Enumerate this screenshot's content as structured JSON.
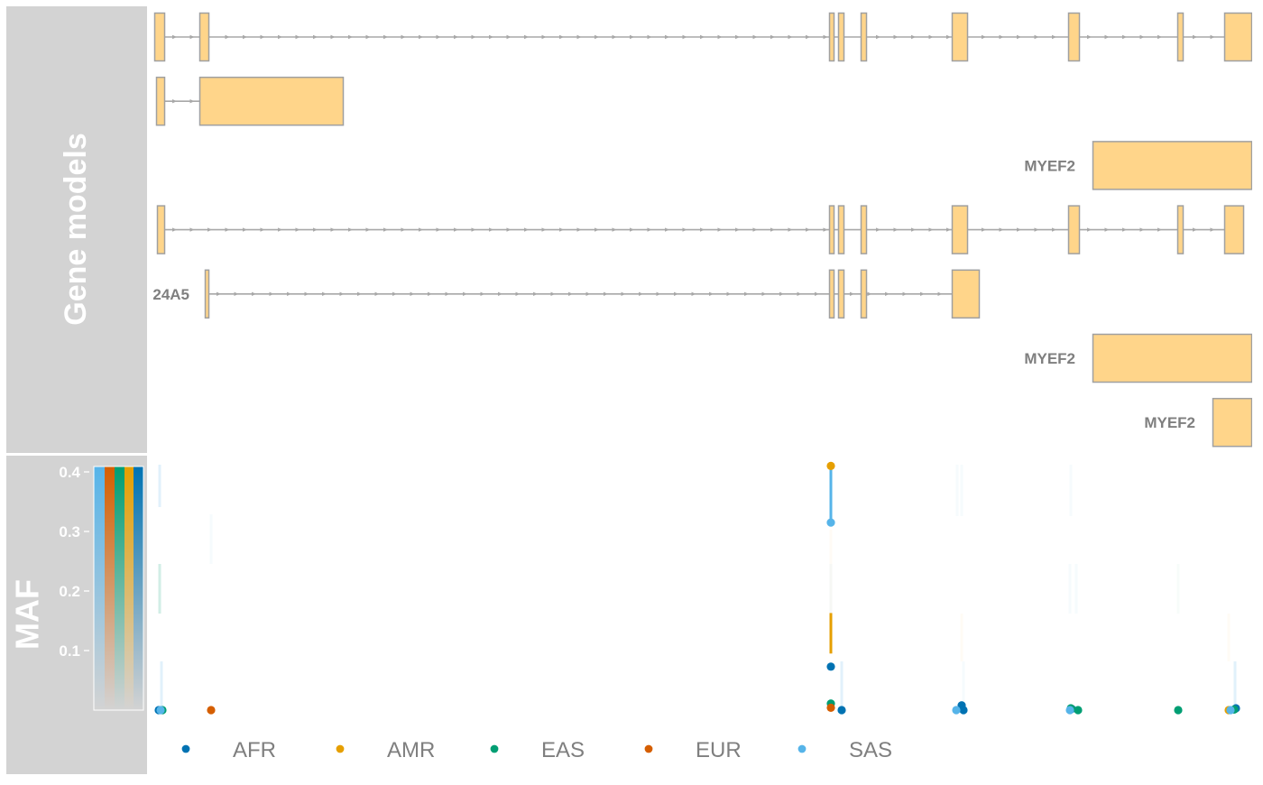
{
  "panels": {
    "gene_models_label": "Gene models",
    "maf_label": "MAF"
  },
  "colors": {
    "panel_bg": "#d3d3d3",
    "exon_fill": "#ffd58a",
    "exon_stroke": "#a0a0a0",
    "intron": "#a8a8a8",
    "gene_label": "#7f7f7f"
  },
  "chart_data": [
    {
      "type": "gene_track",
      "x_unit": "genomic position (relative)",
      "transcripts": [
        {
          "label": "",
          "label_x": null,
          "intron_span": [
            182,
            1357
          ],
          "exons": [
            [
              171,
              182
            ],
            [
              221,
              231
            ],
            [
              919,
              924
            ],
            [
              929,
              935
            ],
            [
              954,
              960
            ],
            [
              1055,
              1072
            ],
            [
              1184,
              1196
            ],
            [
              1305,
              1311
            ],
            [
              1357,
              1387
            ]
          ]
        },
        {
          "label": "",
          "label_x": null,
          "intron_span": [
            182,
            221
          ],
          "exons": [
            [
              173,
              182
            ],
            [
              221,
              380
            ]
          ]
        },
        {
          "label": "MYEF2",
          "label_x": 1192,
          "intron_span": null,
          "exons": [
            [
              1211,
              1387
            ]
          ]
        },
        {
          "label": "",
          "label_x": null,
          "intron_span": [
            182,
            1357
          ],
          "exons": [
            [
              174,
              182
            ],
            [
              919,
              924
            ],
            [
              929,
              935
            ],
            [
              954,
              960
            ],
            [
              1055,
              1072
            ],
            [
              1184,
              1196
            ],
            [
              1305,
              1311
            ],
            [
              1357,
              1378
            ]
          ]
        },
        {
          "label": "24A5",
          "label_x": 210,
          "intron_span": [
            231,
            1055
          ],
          "exons": [
            [
              227,
              231
            ],
            [
              919,
              924
            ],
            [
              929,
              935
            ],
            [
              954,
              960
            ],
            [
              1055,
              1085
            ]
          ]
        },
        {
          "label": "MYEF2",
          "label_x": 1192,
          "intron_span": null,
          "exons": [
            [
              1211,
              1387
            ]
          ]
        },
        {
          "label": "MYEF2",
          "label_x": 1325,
          "intron_span": null,
          "exons": [
            [
              1344,
              1387
            ]
          ]
        },
        {
          "label": "MYEF2",
          "label_x": 1325,
          "intron_span": null,
          "exons": [
            [
              1344,
              1387
            ]
          ]
        },
        {
          "label": "MYEF2",
          "label_x": 1325,
          "intron_span": [
            1363,
            1387
          ],
          "exons": [
            [
              1344,
              1363
            ]
          ]
        }
      ]
    },
    {
      "type": "scatter",
      "ylabel": "MAF",
      "ylim": [
        0,
        0.41
      ],
      "yticks": [
        "0.1",
        "0.2",
        "0.3",
        "0.4"
      ],
      "ytick_values": [
        0.1,
        0.2,
        0.3,
        0.4
      ],
      "legend_placement": "bottom",
      "series": [
        {
          "name": "AFR",
          "color": "#0072b2",
          "points": [
            {
              "x": 176,
              "y": 0.0
            },
            {
              "x": 921,
              "y": 0.073
            },
            {
              "x": 933,
              "y": 0.0
            },
            {
              "x": 1066,
              "y": 0.008
            },
            {
              "x": 1068,
              "y": 0.0
            },
            {
              "x": 1188,
              "y": 0.002
            },
            {
              "x": 1370,
              "y": 0.003
            }
          ]
        },
        {
          "name": "AMR",
          "color": "#e69f00",
          "points": [
            {
              "x": 921,
              "y": 0.41
            },
            {
              "x": 1362,
              "y": 0.0
            }
          ]
        },
        {
          "name": "EAS",
          "color": "#009e73",
          "points": [
            {
              "x": 180,
              "y": 0.0
            },
            {
              "x": 921,
              "y": 0.011
            },
            {
              "x": 1187,
              "y": 0.003
            },
            {
              "x": 1195,
              "y": 0.0
            },
            {
              "x": 1306,
              "y": 0.0
            },
            {
              "x": 1368,
              "y": 0.001
            }
          ]
        },
        {
          "name": "EUR",
          "color": "#d55e00",
          "points": [
            {
              "x": 234,
              "y": 0.0
            },
            {
              "x": 921,
              "y": 0.004
            }
          ]
        },
        {
          "name": "SAS",
          "color": "#56b4e9",
          "points": [
            {
              "x": 178,
              "y": 0.0
            },
            {
              "x": 921,
              "y": 0.315
            },
            {
              "x": 1060,
              "y": 0.0
            },
            {
              "x": 1186,
              "y": 0.0
            },
            {
              "x": 1364,
              "y": 0.0
            }
          ]
        }
      ],
      "highlight_segments": [
        {
          "x": 921,
          "from": 0.315,
          "to": 0.41,
          "color": "#56b4e9"
        },
        {
          "x": 921,
          "from": 0.095,
          "to": 0.163,
          "color": "#e69f00"
        }
      ]
    }
  ]
}
